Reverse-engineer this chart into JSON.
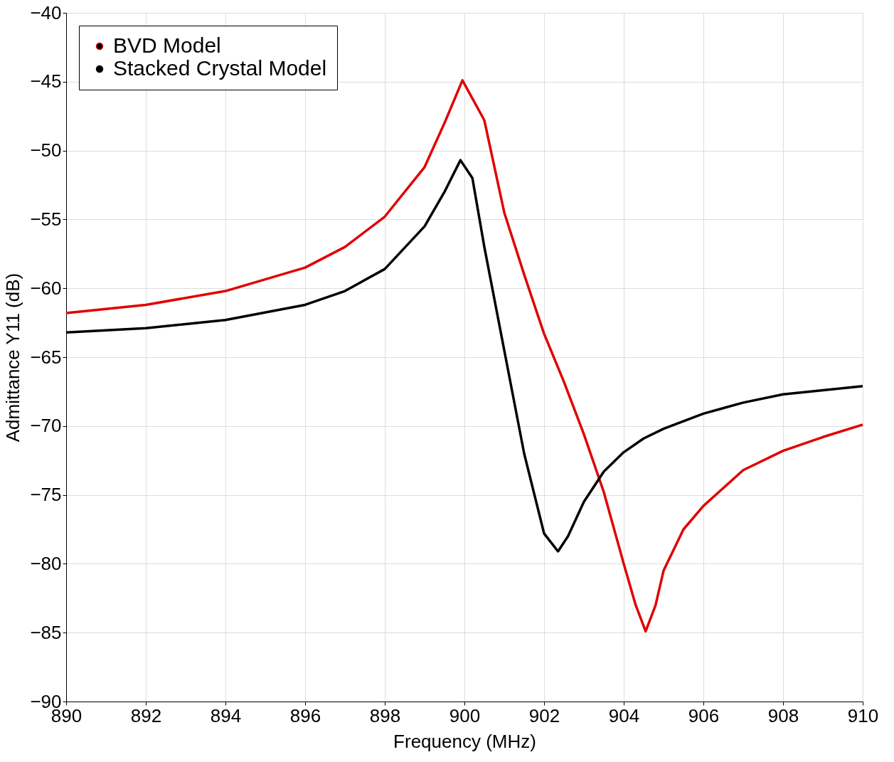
{
  "chart_data": {
    "type": "line",
    "xlabel": "Frequency (MHz)",
    "ylabel": "Admittance Y11 (dB)",
    "xlim": [
      890,
      910
    ],
    "xticks": [
      890,
      892,
      894,
      896,
      898,
      900,
      902,
      904,
      906,
      908,
      910
    ],
    "ylim": [
      -90,
      -40
    ],
    "yticks": [
      -90,
      -85,
      -80,
      -75,
      -70,
      -65,
      -60,
      -55,
      -50,
      -45,
      -40
    ],
    "grid": true,
    "legend": "top left",
    "marker": "none",
    "line_style": "solid",
    "series": [
      {
        "name": "BVD Model",
        "color": "#e00000",
        "x": [
          890,
          892,
          894,
          896,
          897,
          898,
          899,
          899.5,
          899.95,
          900.5,
          901,
          901.5,
          902,
          902.5,
          903,
          903.5,
          904,
          904.3,
          904.55,
          904.8,
          905,
          905.5,
          906,
          907,
          908,
          909,
          910
        ],
        "values": [
          -61.8,
          -61.2,
          -60.2,
          -58.5,
          -57.0,
          -54.8,
          -51.2,
          -48.0,
          -44.9,
          -47.8,
          -54.5,
          -59.0,
          -63.3,
          -66.8,
          -70.6,
          -74.8,
          -80.0,
          -83.0,
          -84.9,
          -83.0,
          -80.5,
          -77.5,
          -75.8,
          -73.2,
          -71.8,
          -70.8,
          -69.9
        ]
      },
      {
        "name": "Stacked Crystal Model",
        "color": "#000000",
        "x": [
          890,
          892,
          894,
          896,
          897,
          898,
          899,
          899.5,
          899.9,
          900.2,
          900.5,
          901,
          901.5,
          902,
          902.35,
          902.6,
          903,
          903.5,
          904,
          904.5,
          905,
          906,
          907,
          908,
          909,
          910
        ],
        "values": [
          -63.2,
          -62.9,
          -62.3,
          -61.2,
          -60.2,
          -58.6,
          -55.5,
          -53.0,
          -50.7,
          -52.0,
          -57.0,
          -64.5,
          -72.0,
          -77.8,
          -79.1,
          -78.0,
          -75.5,
          -73.3,
          -71.9,
          -70.9,
          -70.2,
          -69.1,
          -68.3,
          -67.7,
          -67.4,
          -67.1
        ]
      }
    ]
  }
}
